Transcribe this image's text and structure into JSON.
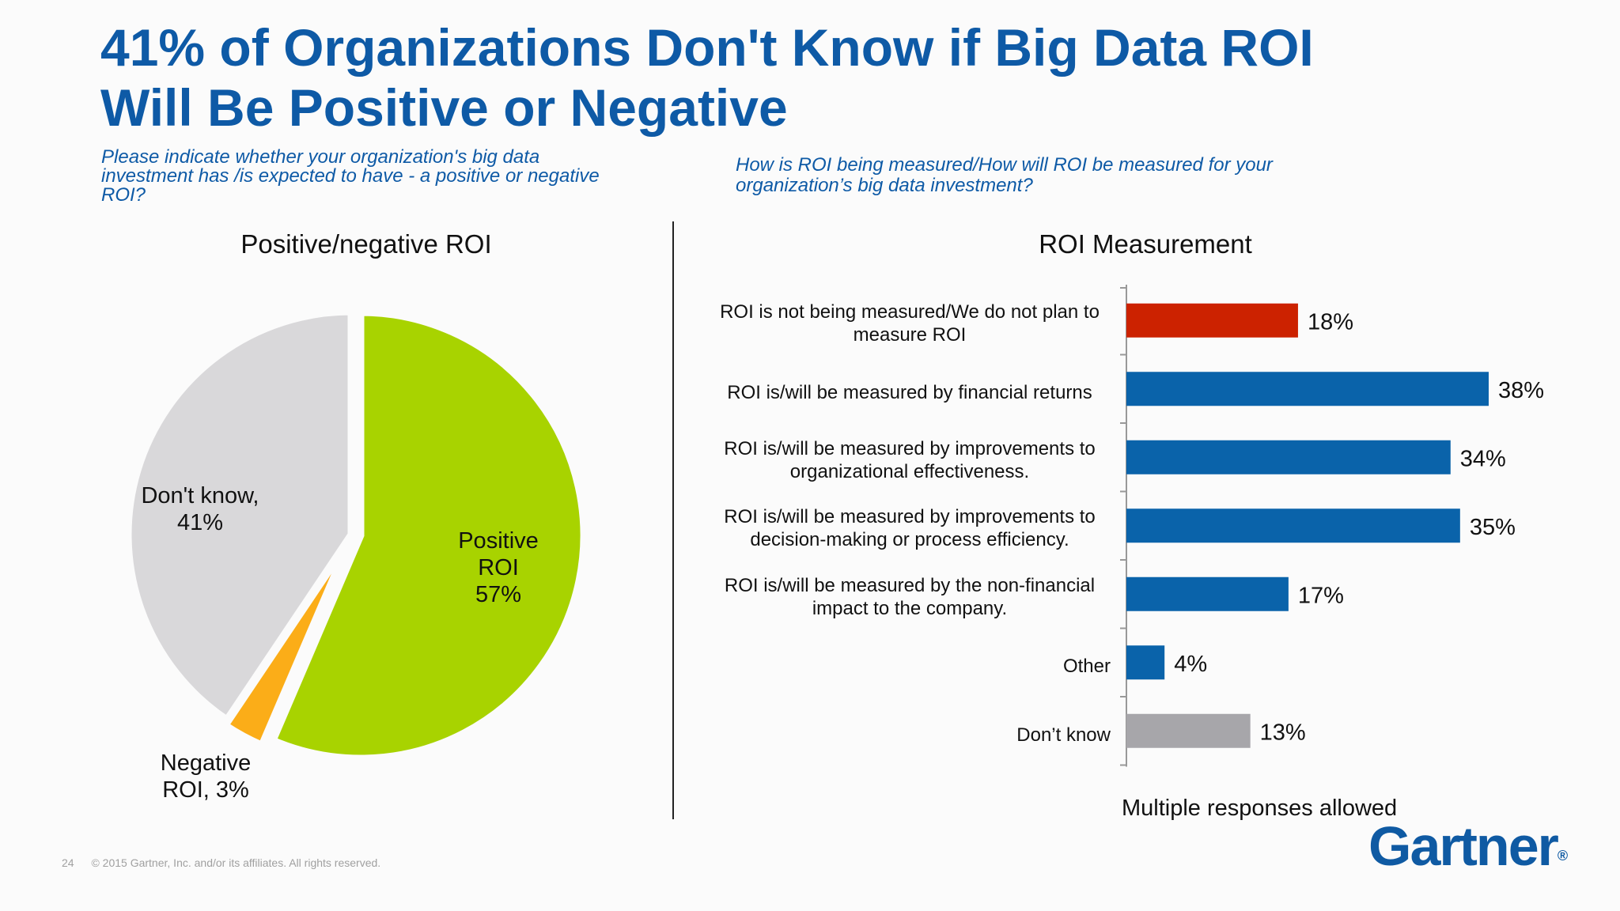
{
  "slide": {
    "title_lines": [
      "41% of Organizations Don't Know if Big Data ROI",
      "Will Be Positive or Negative"
    ],
    "question_left_lines": [
      "Please indicate whether your organization's big data",
      "investment has /is expected to have - a positive or negative",
      "ROI?"
    ],
    "question_right_lines": [
      "How is ROI being measured/How will ROI be measured for your",
      "organization’s big data investment?"
    ],
    "note": "Multiple responses allowed",
    "footer_page": "24",
    "footer_copyright": "© 2015 Gartner, Inc. and/or its affiliates. All rights reserved.",
    "logo_text": "Gartner",
    "logo_mark": "®"
  },
  "chart_data": [
    {
      "type": "pie",
      "title": "Positive/negative ROI",
      "slices": [
        {
          "label_lines": [
            "Positive",
            "ROI",
            "57%"
          ],
          "value": 57,
          "color": "#a8d300"
        },
        {
          "label_lines": [
            "Negative",
            "ROI, 3%"
          ],
          "value": 3,
          "color": "#fbad18"
        },
        {
          "label_lines": [
            "Don't know,",
            "41%"
          ],
          "value": 41,
          "color": "#d9d8da"
        }
      ]
    },
    {
      "type": "bar",
      "orientation": "horizontal",
      "title": "ROI Measurement",
      "xlim": [
        0,
        38
      ],
      "categories": [
        [
          "ROI is not being measured/We do not plan to",
          "measure ROI"
        ],
        [
          "ROI is/will be measured by financial returns"
        ],
        [
          "ROI is/will be measured by improvements to",
          "organizational effectiveness."
        ],
        [
          "ROI is/will be measured by improvements to",
          "decision-making or process efficiency."
        ],
        [
          "ROI is/will be measured by the non-financial",
          "impact to the company."
        ],
        [
          "Other"
        ],
        [
          "Don’t know"
        ]
      ],
      "values": [
        18,
        38,
        34,
        35,
        17,
        4,
        13
      ],
      "value_labels": [
        "18%",
        "38%",
        "34%",
        "35%",
        "17%",
        "4%",
        "13%"
      ],
      "colors": [
        "#cc2200",
        "#0a63aa",
        "#0a63aa",
        "#0a63aa",
        "#0a63aa",
        "#0a63aa",
        "#a7a6aa"
      ]
    }
  ]
}
